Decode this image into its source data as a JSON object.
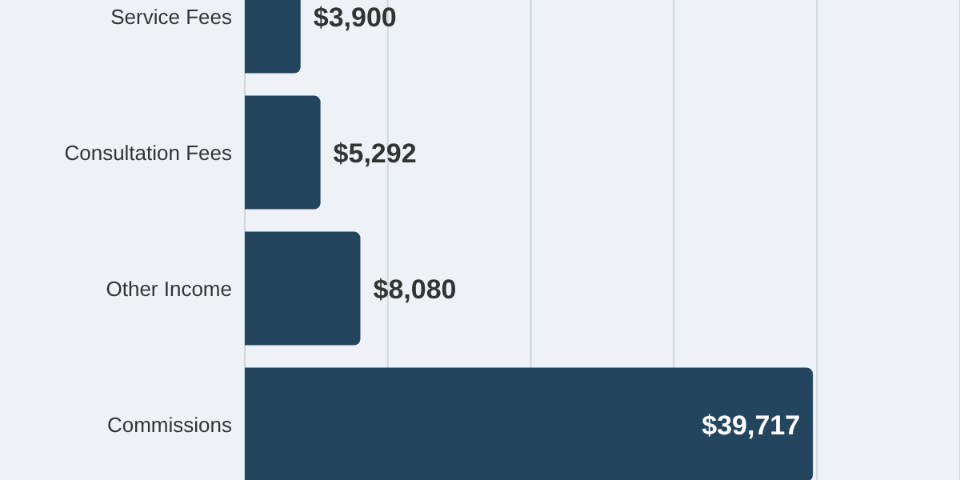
{
  "chart_data": {
    "type": "bar",
    "orientation": "horizontal",
    "categories": [
      "Service Fees",
      "Consultation Fees",
      "Other Income",
      "Commissions"
    ],
    "values": [
      3900,
      5292,
      8080,
      39717
    ],
    "value_labels": [
      "$3,900",
      "$5,292",
      "$8,080",
      "$39,717"
    ],
    "color": "#23455e",
    "xlim": [
      0,
      50000
    ],
    "xticks": [
      {
        "value": 0,
        "label": null
      },
      {
        "value": 10000,
        "label": null
      },
      {
        "value": 20000,
        "label": null
      },
      {
        "value": 30000,
        "label": null
      },
      {
        "value": 40000,
        "label": null
      },
      {
        "value": 50000,
        "label": null
      }
    ],
    "grid": "x",
    "tick_labels": "y"
  }
}
